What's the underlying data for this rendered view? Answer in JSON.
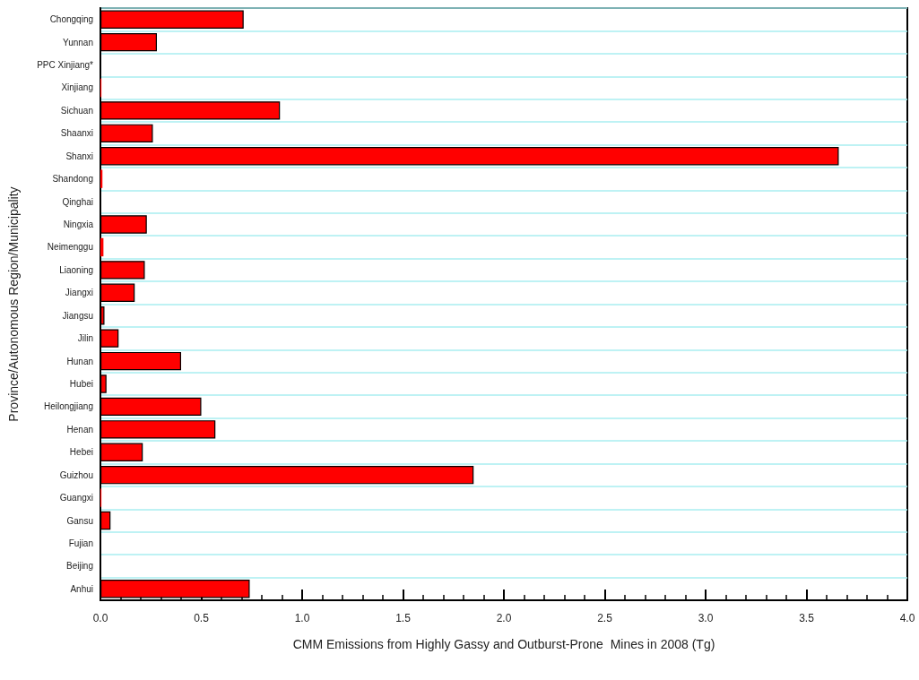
{
  "chart_data": {
    "type": "bar",
    "orientation": "horizontal",
    "xlabel": "CMM Emissions from Highly Gassy and Outburst-Prone  Mines in 2008 (Tg)",
    "ylabel": "Province/Autonomous Region/Municipality",
    "categories": [
      "Chongqing",
      "Yunnan",
      "PPC Xinjiang*",
      "Xinjiang",
      "Sichuan",
      "Shaanxi",
      "Shanxi",
      "Shandong",
      "Qinghai",
      "Ningxia",
      "Neimenggu",
      "Liaoning",
      "Jiangxi",
      "Jiangsu",
      "Jilin",
      "Hunan",
      "Hubei",
      "Heilongjiang",
      "Henan",
      "Hebei",
      "Guizhou",
      "Guangxi",
      "Gansu",
      "Fujian",
      "Beijing",
      "Anhui"
    ],
    "values": [
      0.71,
      0.28,
      0,
      0.005,
      0.89,
      0.26,
      3.66,
      0.01,
      0,
      0.23,
      0.015,
      0.22,
      0.17,
      0.02,
      0.09,
      0.4,
      0.03,
      0.5,
      0.57,
      0.21,
      1.85,
      0.005,
      0.05,
      0,
      0,
      0.74
    ],
    "color": "#ff0000",
    "xlim": [
      0,
      4
    ],
    "xticks": [
      {
        "value": 0,
        "label": "0.0"
      },
      {
        "value": 0.5,
        "label": "0.5"
      },
      {
        "value": 1,
        "label": "1.0"
      },
      {
        "value": 1.5,
        "label": "1.5"
      },
      {
        "value": 2,
        "label": "2.0"
      },
      {
        "value": 2.5,
        "label": "2.5"
      },
      {
        "value": 3,
        "label": "3.0"
      },
      {
        "value": 3.5,
        "label": "3.5"
      },
      {
        "value": 4,
        "label": "4.0"
      }
    ],
    "grid": "y"
  }
}
